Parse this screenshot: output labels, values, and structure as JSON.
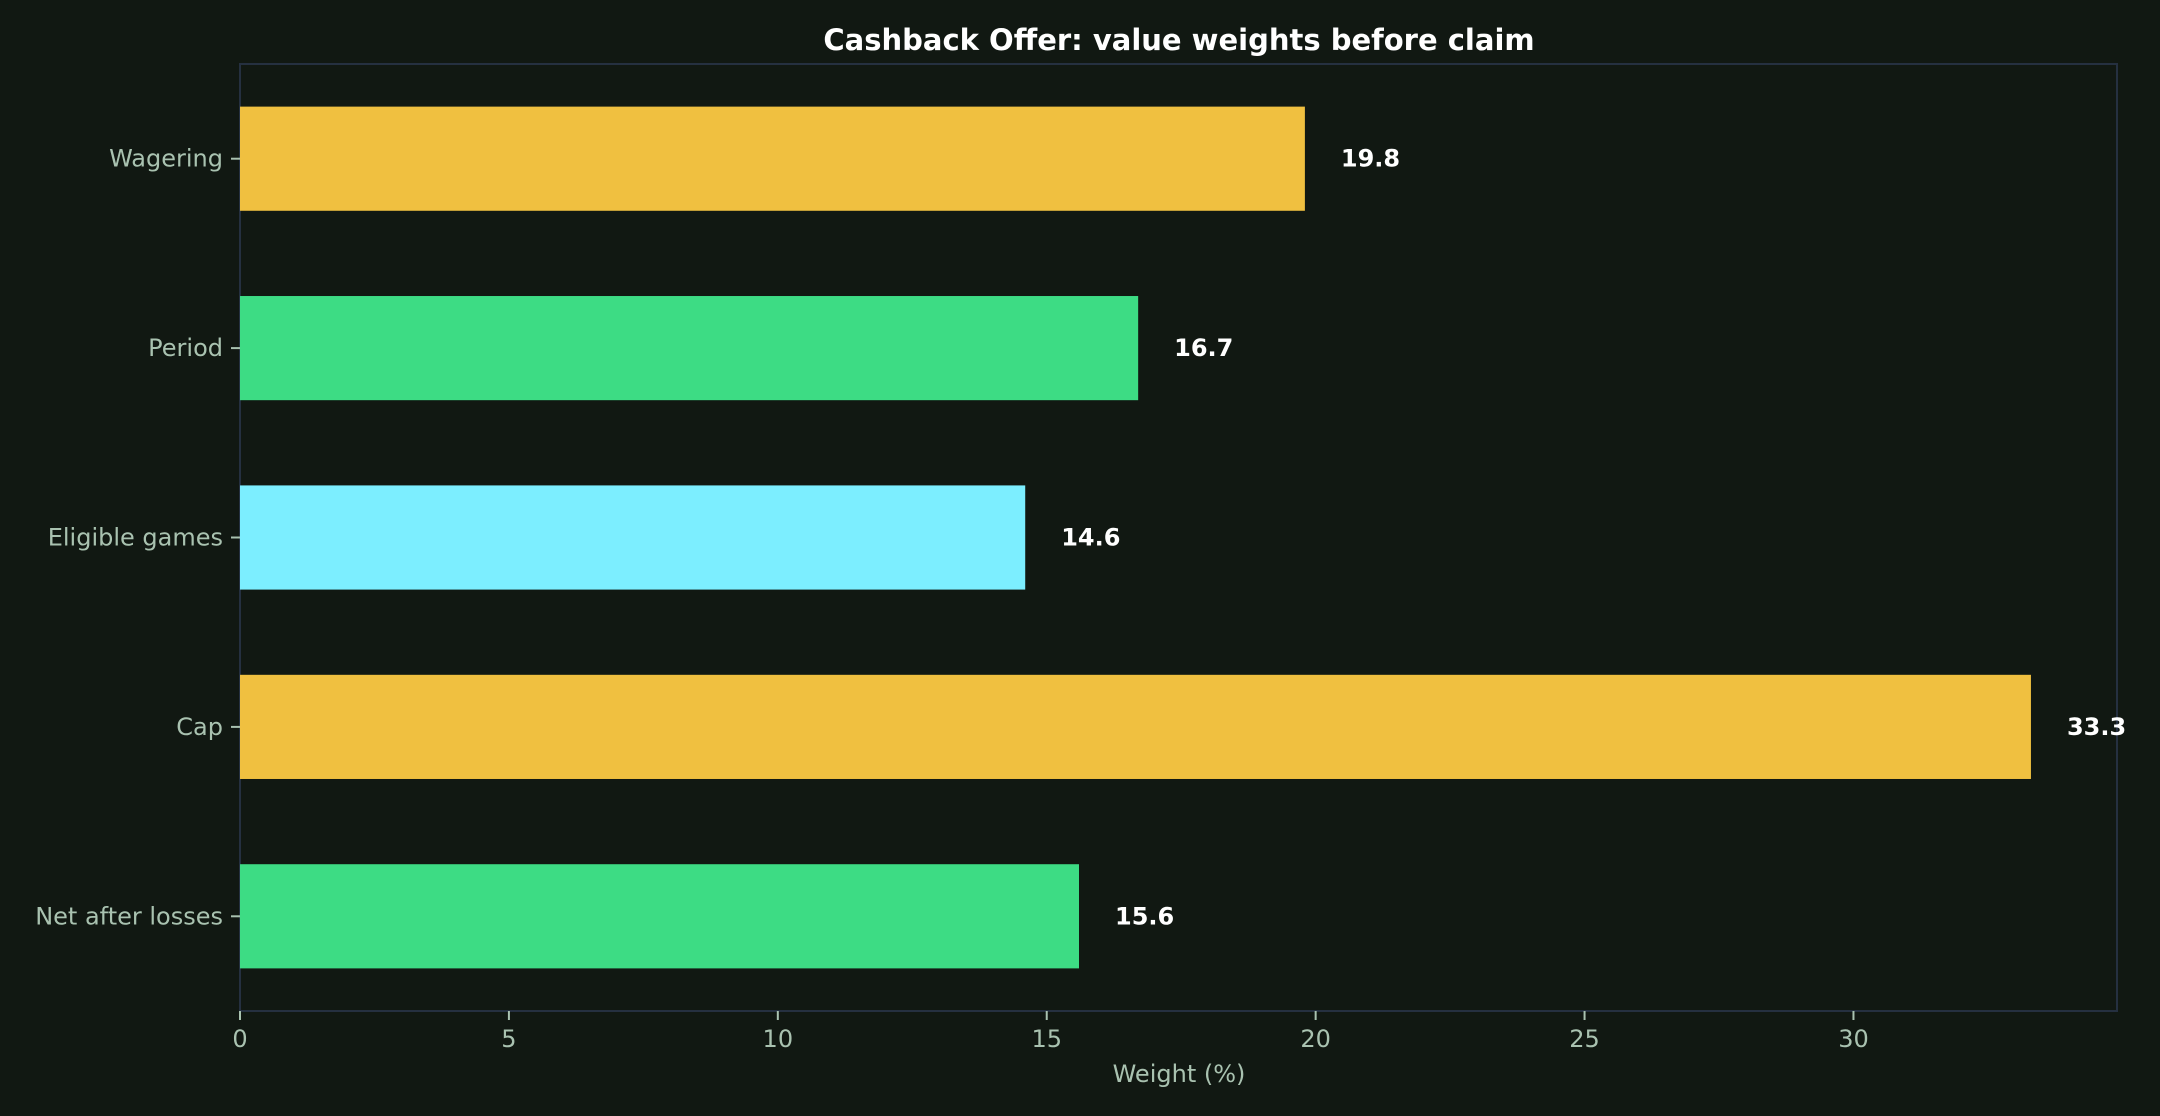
{
  "chart_data": {
    "type": "bar",
    "orientation": "horizontal",
    "title": "Cashback Offer: value weights before claim",
    "xlabel": "Weight (%)",
    "ylabel": "",
    "categories": [
      "Wagering",
      "Period",
      "Eligible games",
      "Cap",
      "Net after losses"
    ],
    "values": [
      19.8,
      16.7,
      14.6,
      33.3,
      15.6
    ],
    "value_labels": [
      "19.8",
      "16.7",
      "14.6",
      "33.3",
      "15.6"
    ],
    "colors": [
      "#f0c040",
      "#3ddc84",
      "#7ceeff",
      "#f0c040",
      "#3ddc84"
    ],
    "xlim": [
      0,
      34.9
    ],
    "xticks": [
      0,
      5,
      10,
      15,
      20,
      25,
      30
    ],
    "xtick_labels": [
      "0",
      "5",
      "10",
      "15",
      "20",
      "25",
      "30"
    ],
    "grid": false,
    "legend": "none"
  },
  "colors": {
    "background": "#111812",
    "axes_border": "#253040",
    "tick_text": "#a9c2b0",
    "title_text": "#ffffff"
  }
}
